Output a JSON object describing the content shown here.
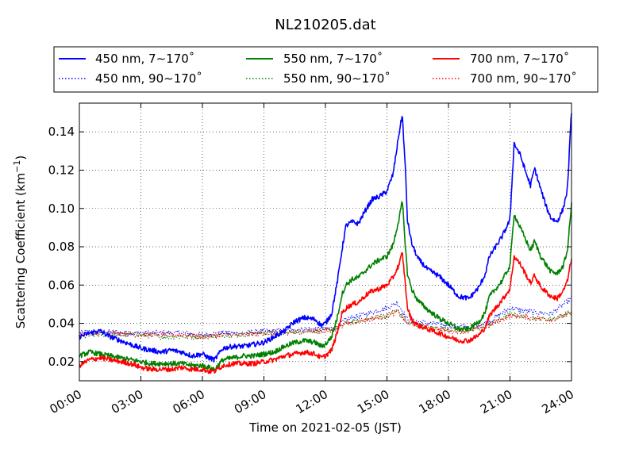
{
  "chart_data": {
    "type": "line",
    "title": "NL210205.dat",
    "xlabel": "Time on 2021-02-05 (JST)",
    "ylabel_prefix": "Scattering Coefficient (km",
    "ylabel_exponent": "−1",
    "ylabel_suffix": ")",
    "xlim": [
      0,
      24
    ],
    "ylim": [
      0.01,
      0.155
    ],
    "grid": true,
    "legend_position": "top",
    "x_ticks": [
      0,
      3,
      6,
      9,
      12,
      15,
      18,
      21,
      24
    ],
    "x_tick_labels": [
      "00:00",
      "03:00",
      "06:00",
      "09:00",
      "12:00",
      "15:00",
      "18:00",
      "21:00",
      "24:00"
    ],
    "y_ticks": [
      0.02,
      0.04,
      0.06,
      0.08,
      0.1,
      0.12,
      0.14
    ],
    "y_tick_labels": [
      "0.02",
      "0.04",
      "0.06",
      "0.08",
      "0.10",
      "0.12",
      "0.14"
    ],
    "legend_entries": [
      "450 nm, 7∼170˚",
      "550 nm, 7∼170˚",
      "700 nm, 7∼170˚",
      "450 nm, 90∼170˚",
      "550 nm, 90∼170˚",
      "700 nm, 90∼170˚"
    ],
    "series": [
      {
        "name": "450 nm, 7∼170˚",
        "color": "#0000ff",
        "style": "solid",
        "x": [
          0,
          0.5,
          1,
          1.5,
          2,
          2.5,
          3,
          3.5,
          4,
          4.5,
          5,
          5.5,
          6,
          6.3,
          6.6,
          7,
          7.5,
          8,
          8.5,
          9,
          9.5,
          10,
          10.5,
          11,
          11.5,
          11.8,
          12,
          12.3,
          12.6,
          12.8,
          13,
          13.3,
          13.6,
          13.8,
          14,
          14.3,
          14.6,
          15,
          15.3,
          15.6,
          15.75,
          15.9,
          16,
          16.2,
          16.5,
          17,
          17.5,
          18,
          18.5,
          19,
          19.5,
          19.8,
          20,
          20.3,
          20.6,
          21,
          21.2,
          21.5,
          21.8,
          22,
          22.2,
          22.5,
          22.8,
          23,
          23.3,
          23.6,
          23.8,
          24
        ],
        "y": [
          0.033,
          0.035,
          0.036,
          0.033,
          0.031,
          0.029,
          0.027,
          0.026,
          0.025,
          0.026,
          0.025,
          0.023,
          0.024,
          0.022,
          0.021,
          0.027,
          0.028,
          0.028,
          0.029,
          0.03,
          0.033,
          0.036,
          0.041,
          0.043,
          0.042,
          0.039,
          0.04,
          0.045,
          0.063,
          0.078,
          0.091,
          0.093,
          0.092,
          0.096,
          0.1,
          0.105,
          0.106,
          0.109,
          0.118,
          0.14,
          0.149,
          0.12,
          0.094,
          0.082,
          0.074,
          0.068,
          0.065,
          0.06,
          0.054,
          0.053,
          0.059,
          0.066,
          0.075,
          0.08,
          0.085,
          0.094,
          0.134,
          0.128,
          0.118,
          0.112,
          0.121,
          0.11,
          0.1,
          0.095,
          0.093,
          0.1,
          0.11,
          0.151
        ]
      },
      {
        "name": "550 nm, 7∼170˚",
        "color": "#008000",
        "style": "solid",
        "x": [
          0,
          0.5,
          1,
          1.5,
          2,
          2.5,
          3,
          3.5,
          4,
          4.5,
          5,
          5.5,
          6,
          6.3,
          6.6,
          7,
          7.5,
          8,
          8.5,
          9,
          9.5,
          10,
          10.5,
          11,
          11.5,
          11.8,
          12,
          12.3,
          12.6,
          12.8,
          13,
          13.3,
          13.6,
          13.8,
          14,
          14.3,
          14.6,
          15,
          15.3,
          15.6,
          15.75,
          15.9,
          16,
          16.2,
          16.5,
          17,
          17.5,
          18,
          18.5,
          19,
          19.5,
          19.8,
          20,
          20.3,
          20.6,
          21,
          21.2,
          21.5,
          21.8,
          22,
          22.2,
          22.5,
          22.8,
          23,
          23.3,
          23.6,
          23.8,
          24
        ],
        "y": [
          0.023,
          0.025,
          0.024,
          0.023,
          0.022,
          0.021,
          0.02,
          0.019,
          0.019,
          0.019,
          0.019,
          0.018,
          0.018,
          0.017,
          0.016,
          0.021,
          0.022,
          0.023,
          0.023,
          0.024,
          0.025,
          0.028,
          0.03,
          0.031,
          0.03,
          0.028,
          0.029,
          0.033,
          0.044,
          0.055,
          0.06,
          0.063,
          0.064,
          0.066,
          0.068,
          0.071,
          0.073,
          0.075,
          0.081,
          0.095,
          0.104,
          0.08,
          0.066,
          0.058,
          0.052,
          0.047,
          0.043,
          0.04,
          0.037,
          0.037,
          0.041,
          0.046,
          0.054,
          0.058,
          0.062,
          0.07,
          0.097,
          0.09,
          0.083,
          0.078,
          0.083,
          0.075,
          0.07,
          0.067,
          0.066,
          0.07,
          0.078,
          0.102
        ]
      },
      {
        "name": "700 nm, 7∼170˚",
        "color": "#ff0000",
        "style": "solid",
        "x": [
          0,
          0.5,
          1,
          1.5,
          2,
          2.5,
          3,
          3.5,
          4,
          4.5,
          5,
          5.5,
          6,
          6.3,
          6.6,
          7,
          7.5,
          8,
          8.5,
          9,
          9.5,
          10,
          10.5,
          11,
          11.5,
          11.8,
          12,
          12.3,
          12.6,
          12.8,
          13,
          13.3,
          13.6,
          13.8,
          14,
          14.3,
          14.6,
          15,
          15.3,
          15.6,
          15.75,
          15.9,
          16,
          16.2,
          16.5,
          17,
          17.5,
          18,
          18.5,
          19,
          19.5,
          19.8,
          20,
          20.3,
          20.6,
          21,
          21.2,
          21.5,
          21.8,
          22,
          22.2,
          22.5,
          22.8,
          23,
          23.3,
          23.6,
          23.8,
          24
        ],
        "y": [
          0.018,
          0.021,
          0.022,
          0.021,
          0.02,
          0.019,
          0.017,
          0.016,
          0.016,
          0.016,
          0.017,
          0.016,
          0.016,
          0.015,
          0.015,
          0.018,
          0.019,
          0.019,
          0.019,
          0.02,
          0.021,
          0.023,
          0.024,
          0.025,
          0.024,
          0.022,
          0.023,
          0.026,
          0.036,
          0.045,
          0.048,
          0.05,
          0.051,
          0.053,
          0.055,
          0.057,
          0.058,
          0.06,
          0.064,
          0.071,
          0.077,
          0.06,
          0.048,
          0.042,
          0.039,
          0.037,
          0.035,
          0.033,
          0.031,
          0.031,
          0.034,
          0.038,
          0.044,
          0.048,
          0.052,
          0.058,
          0.075,
          0.071,
          0.065,
          0.061,
          0.065,
          0.059,
          0.056,
          0.054,
          0.053,
          0.057,
          0.062,
          0.074
        ]
      },
      {
        "name": "450 nm, 90∼170˚",
        "color": "#0000ff",
        "style": "dotted",
        "x": [
          0,
          1,
          2,
          3,
          4,
          5,
          6,
          7,
          8,
          9,
          10,
          11,
          12,
          12.5,
          13,
          14,
          15,
          15.5,
          16,
          17,
          18,
          19,
          20,
          21,
          22,
          23,
          24
        ],
        "y": [
          0.035,
          0.036,
          0.035,
          0.035,
          0.035,
          0.035,
          0.034,
          0.035,
          0.035,
          0.036,
          0.036,
          0.037,
          0.037,
          0.038,
          0.042,
          0.045,
          0.048,
          0.051,
          0.042,
          0.04,
          0.039,
          0.038,
          0.041,
          0.048,
          0.046,
          0.045,
          0.053
        ]
      },
      {
        "name": "550 nm, 90∼170˚",
        "color": "#008000",
        "style": "dotted",
        "x": [
          0,
          1,
          2,
          3,
          4,
          5,
          6,
          7,
          8,
          9,
          10,
          11,
          12,
          12.5,
          13,
          14,
          15,
          15.5,
          16,
          17,
          18,
          19,
          20,
          21,
          22,
          23,
          24
        ],
        "y": [
          0.033,
          0.034,
          0.034,
          0.034,
          0.033,
          0.033,
          0.033,
          0.034,
          0.034,
          0.035,
          0.035,
          0.036,
          0.036,
          0.037,
          0.04,
          0.042,
          0.044,
          0.047,
          0.04,
          0.038,
          0.037,
          0.036,
          0.039,
          0.045,
          0.043,
          0.042,
          0.046
        ]
      },
      {
        "name": "700 nm, 90∼170˚",
        "color": "#ff0000",
        "style": "dotted",
        "x": [
          0,
          1,
          2,
          3,
          4,
          5,
          6,
          7,
          8,
          9,
          10,
          11,
          12,
          12.5,
          13,
          14,
          15,
          15.5,
          16,
          17,
          18,
          19,
          20,
          21,
          22,
          23,
          24
        ],
        "y": [
          0.034,
          0.035,
          0.035,
          0.034,
          0.034,
          0.034,
          0.033,
          0.034,
          0.034,
          0.035,
          0.035,
          0.036,
          0.036,
          0.037,
          0.04,
          0.042,
          0.044,
          0.046,
          0.04,
          0.038,
          0.036,
          0.036,
          0.039,
          0.044,
          0.043,
          0.042,
          0.045
        ]
      }
    ]
  }
}
